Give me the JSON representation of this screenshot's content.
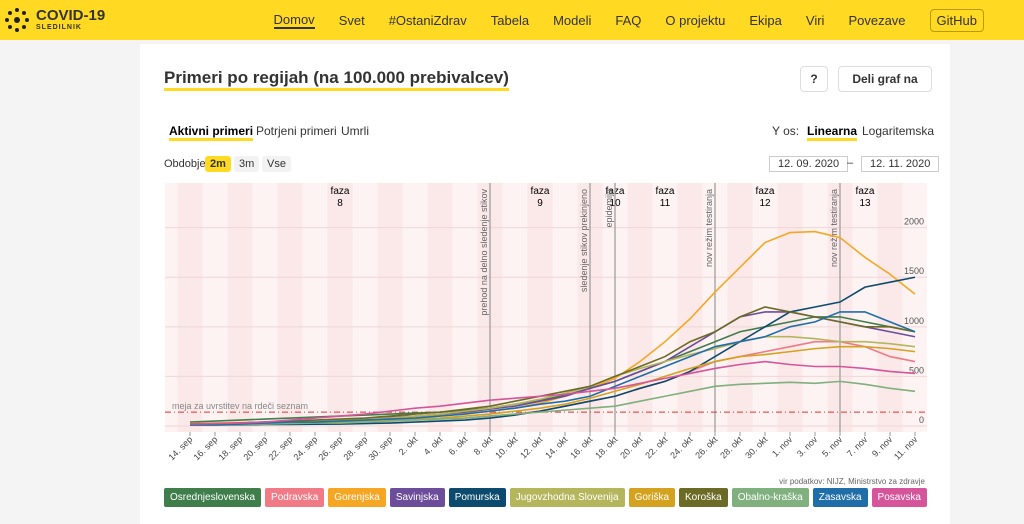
{
  "header": {
    "logo": "COVID-19",
    "logo_sub": "SLEDILNIK",
    "nav": [
      "Domov",
      "Svet",
      "#OstaniZdrav",
      "Tabela",
      "Modeli",
      "FAQ",
      "O projektu",
      "Ekipa",
      "Viri",
      "Povezave",
      "GitHub"
    ]
  },
  "card": {
    "title": "Primeri po regijah (na 100.000 prebivalcev)",
    "help_button": "?",
    "share_button": "Deli graf na",
    "tabs": [
      "Aktivni primeri",
      "Potrjeni primeri",
      "Umrli"
    ],
    "y_axis_label": "Y os:",
    "scale_options": [
      "Linearna",
      "Logaritemska"
    ],
    "period_label": "Obdobje",
    "periods": [
      "2m",
      "3m",
      "Vse"
    ],
    "date_from": "12. 09. 2020",
    "date_separator": "–",
    "date_to": "12. 11. 2020",
    "source": "vir podatkov: NIJZ, Ministrstvo za zdravje"
  },
  "chart_data": {
    "type": "line",
    "x": [
      "14. sep",
      "16. sep",
      "18. sep",
      "20. sep",
      "22. sep",
      "24. sep",
      "26. sep",
      "28. sep",
      "30. sep",
      "2. okt",
      "4. okt",
      "6. okt",
      "8. okt",
      "10. okt",
      "12. okt",
      "14. okt",
      "16. okt",
      "18. okt",
      "20. okt",
      "22. okt",
      "24. okt",
      "26. okt",
      "28. okt",
      "30. okt",
      "1. nov",
      "3. nov",
      "5. nov",
      "7. nov",
      "9. nov",
      "11. nov"
    ],
    "ylim": [
      0,
      2450
    ],
    "yticks": [
      0,
      500,
      1000,
      1500,
      2000
    ],
    "grid": true,
    "series": [
      {
        "name": "Osrednjeslovenska",
        "color": "#3f7d4b",
        "values": [
          40,
          50,
          60,
          70,
          80,
          90,
          100,
          110,
          120,
          130,
          140,
          160,
          180,
          220,
          260,
          310,
          380,
          450,
          550,
          650,
          750,
          850,
          950,
          1000,
          1050,
          1100,
          1100,
          1050,
          1000,
          950
        ]
      },
      {
        "name": "Podravska",
        "color": "#f07a86",
        "values": [
          10,
          15,
          20,
          25,
          30,
          35,
          40,
          45,
          50,
          60,
          70,
          80,
          100,
          120,
          150,
          200,
          250,
          300,
          380,
          450,
          550,
          650,
          700,
          750,
          800,
          850,
          850,
          800,
          700,
          650
        ]
      },
      {
        "name": "Gorenjska",
        "color": "#f5a623",
        "values": [
          25,
          30,
          35,
          40,
          45,
          50,
          60,
          70,
          80,
          95,
          110,
          130,
          150,
          180,
          230,
          300,
          380,
          480,
          650,
          850,
          1080,
          1350,
          1600,
          1850,
          1950,
          1960,
          1900,
          1700,
          1530,
          1330
        ]
      },
      {
        "name": "Savinjska",
        "color": "#6c4d9b",
        "values": [
          15,
          20,
          30,
          40,
          40,
          50,
          60,
          70,
          90,
          100,
          120,
          140,
          170,
          200,
          250,
          300,
          380,
          450,
          550,
          650,
          800,
          950,
          1100,
          1150,
          1150,
          1100,
          1050,
          1000,
          950,
          900
        ]
      },
      {
        "name": "Pomurska",
        "color": "#0d4b6e",
        "values": [
          10,
          10,
          12,
          15,
          15,
          18,
          20,
          25,
          30,
          40,
          50,
          60,
          80,
          110,
          150,
          200,
          250,
          300,
          380,
          450,
          550,
          700,
          850,
          1000,
          1150,
          1200,
          1250,
          1400,
          1450,
          1500
        ]
      },
      {
        "name": "Jugovzhodna Slovenija",
        "color": "#b5b55c",
        "values": [
          15,
          20,
          25,
          30,
          40,
          50,
          60,
          70,
          80,
          100,
          120,
          150,
          180,
          220,
          270,
          330,
          400,
          500,
          580,
          650,
          720,
          780,
          850,
          900,
          900,
          880,
          850,
          850,
          830,
          800
        ]
      },
      {
        "name": "Goriška",
        "color": "#d4a21e",
        "values": [
          20,
          20,
          25,
          30,
          30,
          40,
          45,
          50,
          60,
          70,
          80,
          100,
          120,
          150,
          180,
          220,
          280,
          350,
          420,
          500,
          580,
          650,
          700,
          720,
          750,
          780,
          800,
          800,
          780,
          750
        ]
      },
      {
        "name": "Koroška",
        "color": "#6b6b25",
        "values": [
          20,
          25,
          30,
          40,
          50,
          60,
          70,
          80,
          100,
          120,
          140,
          170,
          200,
          250,
          300,
          350,
          400,
          500,
          600,
          700,
          850,
          950,
          1100,
          1200,
          1150,
          1100,
          1050,
          1000,
          1000,
          950
        ]
      },
      {
        "name": "Obalno-kraška",
        "color": "#7fb07d",
        "values": [
          10,
          10,
          15,
          20,
          25,
          30,
          30,
          40,
          50,
          60,
          70,
          80,
          100,
          120,
          140,
          160,
          180,
          200,
          250,
          300,
          350,
          400,
          420,
          430,
          440,
          430,
          450,
          420,
          380,
          350
        ]
      },
      {
        "name": "Zasavska",
        "color": "#1f6ea8",
        "values": [
          10,
          10,
          20,
          30,
          40,
          40,
          50,
          60,
          70,
          80,
          100,
          120,
          150,
          180,
          220,
          250,
          300,
          400,
          500,
          600,
          700,
          800,
          850,
          900,
          1000,
          1050,
          1150,
          1150,
          1050,
          950
        ]
      },
      {
        "name": "Posavska",
        "color": "#d6549a",
        "values": [
          20,
          25,
          30,
          40,
          60,
          80,
          100,
          120,
          150,
          180,
          200,
          230,
          260,
          280,
          300,
          320,
          350,
          380,
          430,
          480,
          530,
          580,
          620,
          650,
          620,
          600,
          600,
          580,
          550,
          530
        ]
      }
    ],
    "phases": [
      {
        "label": "faza",
        "number": "8",
        "x": "26. sep"
      },
      {
        "label": "faza",
        "number": "9",
        "x": "12. okt"
      },
      {
        "label": "faza",
        "number": "10",
        "x": "18. okt"
      },
      {
        "label": "faza",
        "number": "11",
        "x": "22. okt"
      },
      {
        "label": "faza",
        "number": "12",
        "x": "30. okt"
      },
      {
        "label": "faza",
        "number": "13",
        "x": "7. nov"
      }
    ],
    "events": [
      {
        "label": "prehod na delno sledenje stikov",
        "x": "8. okt"
      },
      {
        "label": "sledenje stikov prekinjeno",
        "x": "16. okt"
      },
      {
        "label": "epidemija",
        "x": "18. okt"
      },
      {
        "label": "nov režim testiranja",
        "x": "26. okt"
      },
      {
        "label": "nov režim testiranja",
        "x": "5. nov"
      }
    ],
    "threshold": {
      "label": "meja za uvrstitev na rdeči seznam",
      "value": 140
    }
  }
}
